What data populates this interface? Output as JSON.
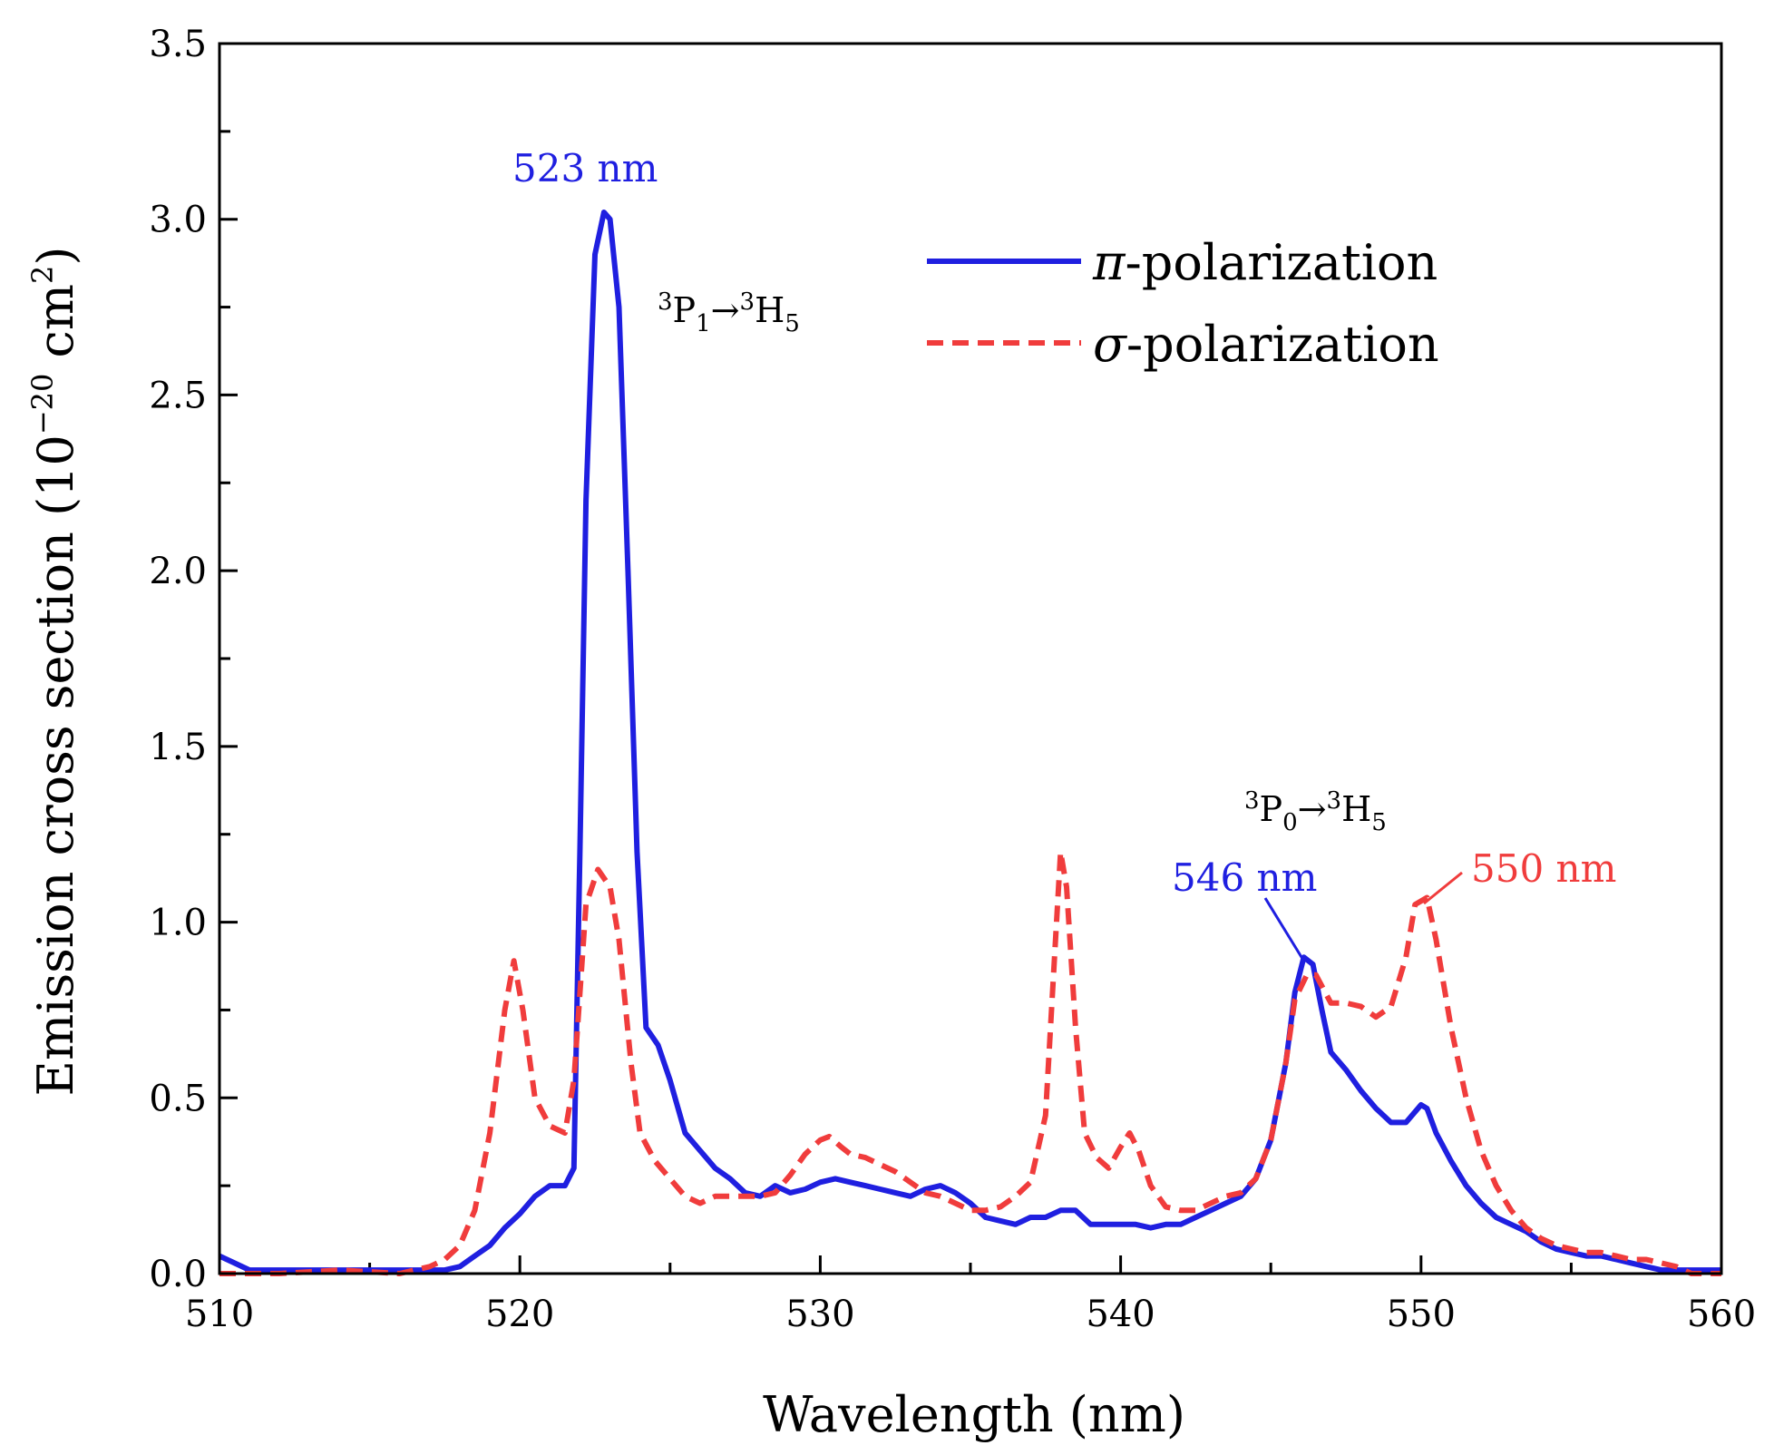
{
  "chart_data": {
    "type": "line",
    "title": "",
    "xlabel": "Wavelength (nm)",
    "ylabel": {
      "base": "Emission cross section (10",
      "exp": "−20",
      "mid": " cm",
      "exp2": "2",
      "end": ")"
    },
    "xlim": [
      510,
      560
    ],
    "ylim": [
      0,
      3.5
    ],
    "xticks": [
      "510",
      "520",
      "530",
      "540",
      "550",
      "560"
    ],
    "yticks": [
      "0.0",
      "0.5",
      "1.0",
      "1.5",
      "2.0",
      "2.5",
      "3.0",
      "3.5"
    ],
    "grid": false,
    "legend_position": "top-right",
    "series": [
      {
        "name": "π-polarization",
        "name_symbol": "π",
        "name_rest": "-polarization",
        "color": "#1f1fe0",
        "style": "solid",
        "points": [
          [
            510.0,
            0.05
          ],
          [
            510.5,
            0.03
          ],
          [
            511.0,
            0.01
          ],
          [
            512,
            0.01
          ],
          [
            514,
            0.01
          ],
          [
            516,
            0.01
          ],
          [
            517.5,
            0.01
          ],
          [
            518.0,
            0.02
          ],
          [
            518.5,
            0.05
          ],
          [
            519.0,
            0.08
          ],
          [
            519.5,
            0.13
          ],
          [
            520.0,
            0.17
          ],
          [
            520.5,
            0.22
          ],
          [
            521.0,
            0.25
          ],
          [
            521.5,
            0.25
          ],
          [
            521.8,
            0.3
          ],
          [
            522.0,
            1.2
          ],
          [
            522.2,
            2.2
          ],
          [
            522.5,
            2.9
          ],
          [
            522.8,
            3.02
          ],
          [
            523.0,
            3.0
          ],
          [
            523.3,
            2.75
          ],
          [
            523.6,
            2.0
          ],
          [
            523.9,
            1.2
          ],
          [
            524.2,
            0.7
          ],
          [
            524.6,
            0.65
          ],
          [
            525.0,
            0.55
          ],
          [
            525.5,
            0.4
          ],
          [
            526.0,
            0.35
          ],
          [
            526.5,
            0.3
          ],
          [
            527.0,
            0.27
          ],
          [
            527.5,
            0.23
          ],
          [
            528.0,
            0.22
          ],
          [
            528.5,
            0.25
          ],
          [
            529.0,
            0.23
          ],
          [
            529.5,
            0.24
          ],
          [
            530.0,
            0.26
          ],
          [
            530.5,
            0.27
          ],
          [
            531.0,
            0.26
          ],
          [
            531.5,
            0.25
          ],
          [
            532.0,
            0.24
          ],
          [
            532.5,
            0.23
          ],
          [
            533.0,
            0.22
          ],
          [
            533.5,
            0.24
          ],
          [
            534.0,
            0.25
          ],
          [
            534.5,
            0.23
          ],
          [
            535.0,
            0.2
          ],
          [
            535.5,
            0.16
          ],
          [
            536.0,
            0.15
          ],
          [
            536.5,
            0.14
          ],
          [
            537.0,
            0.16
          ],
          [
            537.5,
            0.16
          ],
          [
            538.0,
            0.18
          ],
          [
            538.5,
            0.18
          ],
          [
            539.0,
            0.14
          ],
          [
            539.5,
            0.14
          ],
          [
            540.0,
            0.14
          ],
          [
            540.5,
            0.14
          ],
          [
            541.0,
            0.13
          ],
          [
            541.5,
            0.14
          ],
          [
            542.0,
            0.14
          ],
          [
            542.5,
            0.16
          ],
          [
            543.0,
            0.18
          ],
          [
            543.5,
            0.2
          ],
          [
            544.0,
            0.22
          ],
          [
            544.5,
            0.27
          ],
          [
            545.0,
            0.38
          ],
          [
            545.5,
            0.6
          ],
          [
            545.8,
            0.8
          ],
          [
            546.1,
            0.9
          ],
          [
            546.4,
            0.88
          ],
          [
            546.7,
            0.75
          ],
          [
            547.0,
            0.63
          ],
          [
            547.5,
            0.58
          ],
          [
            548.0,
            0.52
          ],
          [
            548.5,
            0.47
          ],
          [
            549.0,
            0.43
          ],
          [
            549.5,
            0.43
          ],
          [
            550.0,
            0.48
          ],
          [
            550.2,
            0.47
          ],
          [
            550.5,
            0.4
          ],
          [
            551.0,
            0.32
          ],
          [
            551.5,
            0.25
          ],
          [
            552.0,
            0.2
          ],
          [
            552.5,
            0.16
          ],
          [
            553.0,
            0.14
          ],
          [
            553.5,
            0.12
          ],
          [
            554.0,
            0.09
          ],
          [
            554.5,
            0.07
          ],
          [
            555.0,
            0.06
          ],
          [
            555.5,
            0.05
          ],
          [
            556.0,
            0.05
          ],
          [
            556.5,
            0.04
          ],
          [
            557.0,
            0.03
          ],
          [
            557.5,
            0.02
          ],
          [
            558.0,
            0.01
          ],
          [
            559.0,
            0.01
          ],
          [
            560.0,
            0.01
          ]
        ]
      },
      {
        "name": "σ-polarization",
        "name_symbol": "σ",
        "name_rest": "-polarization",
        "color": "#f03c3c",
        "style": "dashed",
        "points": [
          [
            510.0,
            0.0
          ],
          [
            512,
            0.0
          ],
          [
            514,
            0.01
          ],
          [
            516,
            0.0
          ],
          [
            517.0,
            0.02
          ],
          [
            517.5,
            0.04
          ],
          [
            518.0,
            0.08
          ],
          [
            518.5,
            0.18
          ],
          [
            519.0,
            0.4
          ],
          [
            519.5,
            0.75
          ],
          [
            519.8,
            0.89
          ],
          [
            520.1,
            0.75
          ],
          [
            520.5,
            0.5
          ],
          [
            521.0,
            0.42
          ],
          [
            521.5,
            0.4
          ],
          [
            521.8,
            0.55
          ],
          [
            522.2,
            1.05
          ],
          [
            522.6,
            1.15
          ],
          [
            523.0,
            1.1
          ],
          [
            523.3,
            0.95
          ],
          [
            523.7,
            0.6
          ],
          [
            524.0,
            0.4
          ],
          [
            524.5,
            0.32
          ],
          [
            525.0,
            0.27
          ],
          [
            525.5,
            0.22
          ],
          [
            526.0,
            0.2
          ],
          [
            526.5,
            0.22
          ],
          [
            527.0,
            0.22
          ],
          [
            527.5,
            0.22
          ],
          [
            528.0,
            0.22
          ],
          [
            528.5,
            0.23
          ],
          [
            529.0,
            0.28
          ],
          [
            529.5,
            0.34
          ],
          [
            530.0,
            0.38
          ],
          [
            530.3,
            0.39
          ],
          [
            530.7,
            0.36
          ],
          [
            531.0,
            0.34
          ],
          [
            531.5,
            0.33
          ],
          [
            532.0,
            0.31
          ],
          [
            532.5,
            0.29
          ],
          [
            533.0,
            0.26
          ],
          [
            533.5,
            0.23
          ],
          [
            534.0,
            0.22
          ],
          [
            534.5,
            0.2
          ],
          [
            535.0,
            0.18
          ],
          [
            535.5,
            0.18
          ],
          [
            536.0,
            0.19
          ],
          [
            536.5,
            0.22
          ],
          [
            537.0,
            0.26
          ],
          [
            537.5,
            0.45
          ],
          [
            537.8,
            0.9
          ],
          [
            538.0,
            1.2
          ],
          [
            538.2,
            1.1
          ],
          [
            538.5,
            0.7
          ],
          [
            538.8,
            0.4
          ],
          [
            539.2,
            0.33
          ],
          [
            539.6,
            0.3
          ],
          [
            540.0,
            0.36
          ],
          [
            540.3,
            0.4
          ],
          [
            540.6,
            0.35
          ],
          [
            541.0,
            0.25
          ],
          [
            541.5,
            0.19
          ],
          [
            542.0,
            0.18
          ],
          [
            542.5,
            0.18
          ],
          [
            543.0,
            0.2
          ],
          [
            543.5,
            0.22
          ],
          [
            544.0,
            0.23
          ],
          [
            544.5,
            0.27
          ],
          [
            545.0,
            0.38
          ],
          [
            545.5,
            0.6
          ],
          [
            545.8,
            0.78
          ],
          [
            546.2,
            0.85
          ],
          [
            546.5,
            0.85
          ],
          [
            547.0,
            0.77
          ],
          [
            547.5,
            0.77
          ],
          [
            548.0,
            0.76
          ],
          [
            548.5,
            0.73
          ],
          [
            549.0,
            0.76
          ],
          [
            549.5,
            0.9
          ],
          [
            549.8,
            1.05
          ],
          [
            550.2,
            1.07
          ],
          [
            550.5,
            0.95
          ],
          [
            551.0,
            0.7
          ],
          [
            551.5,
            0.5
          ],
          [
            552.0,
            0.35
          ],
          [
            552.5,
            0.25
          ],
          [
            553.0,
            0.18
          ],
          [
            553.5,
            0.13
          ],
          [
            554.0,
            0.1
          ],
          [
            554.5,
            0.08
          ],
          [
            555.0,
            0.07
          ],
          [
            555.5,
            0.06
          ],
          [
            556.0,
            0.06
          ],
          [
            556.5,
            0.05
          ],
          [
            557.0,
            0.04
          ],
          [
            557.5,
            0.04
          ],
          [
            558.0,
            0.03
          ],
          [
            558.5,
            0.02
          ],
          [
            559.0,
            0.0
          ],
          [
            560.0,
            0.0
          ]
        ]
      }
    ],
    "annotations": [
      {
        "id": "peak-523",
        "text": "523 nm",
        "x": 523,
        "y": 3.02,
        "color": "#1f1fe0",
        "leader": false
      },
      {
        "id": "peak-546",
        "text": "546 nm",
        "x": 546.1,
        "y": 0.9,
        "color": "#1f1fe0",
        "leader": true
      },
      {
        "id": "peak-550",
        "text": "550 nm",
        "x": 550.0,
        "y": 1.07,
        "color": "#f03c3c",
        "leader": true
      }
    ],
    "transitions": [
      {
        "id": "transition-3p1-3h5",
        "sup1": "3",
        "term1": "P",
        "sub1": "1",
        "arrow": "→",
        "sup2": "3",
        "term2": "H",
        "sub2": "5"
      },
      {
        "id": "transition-3p0-3h5",
        "sup1": "3",
        "term1": "P",
        "sub1": "0",
        "arrow": "→",
        "sup2": "3",
        "term2": "H",
        "sub2": "5"
      }
    ]
  }
}
